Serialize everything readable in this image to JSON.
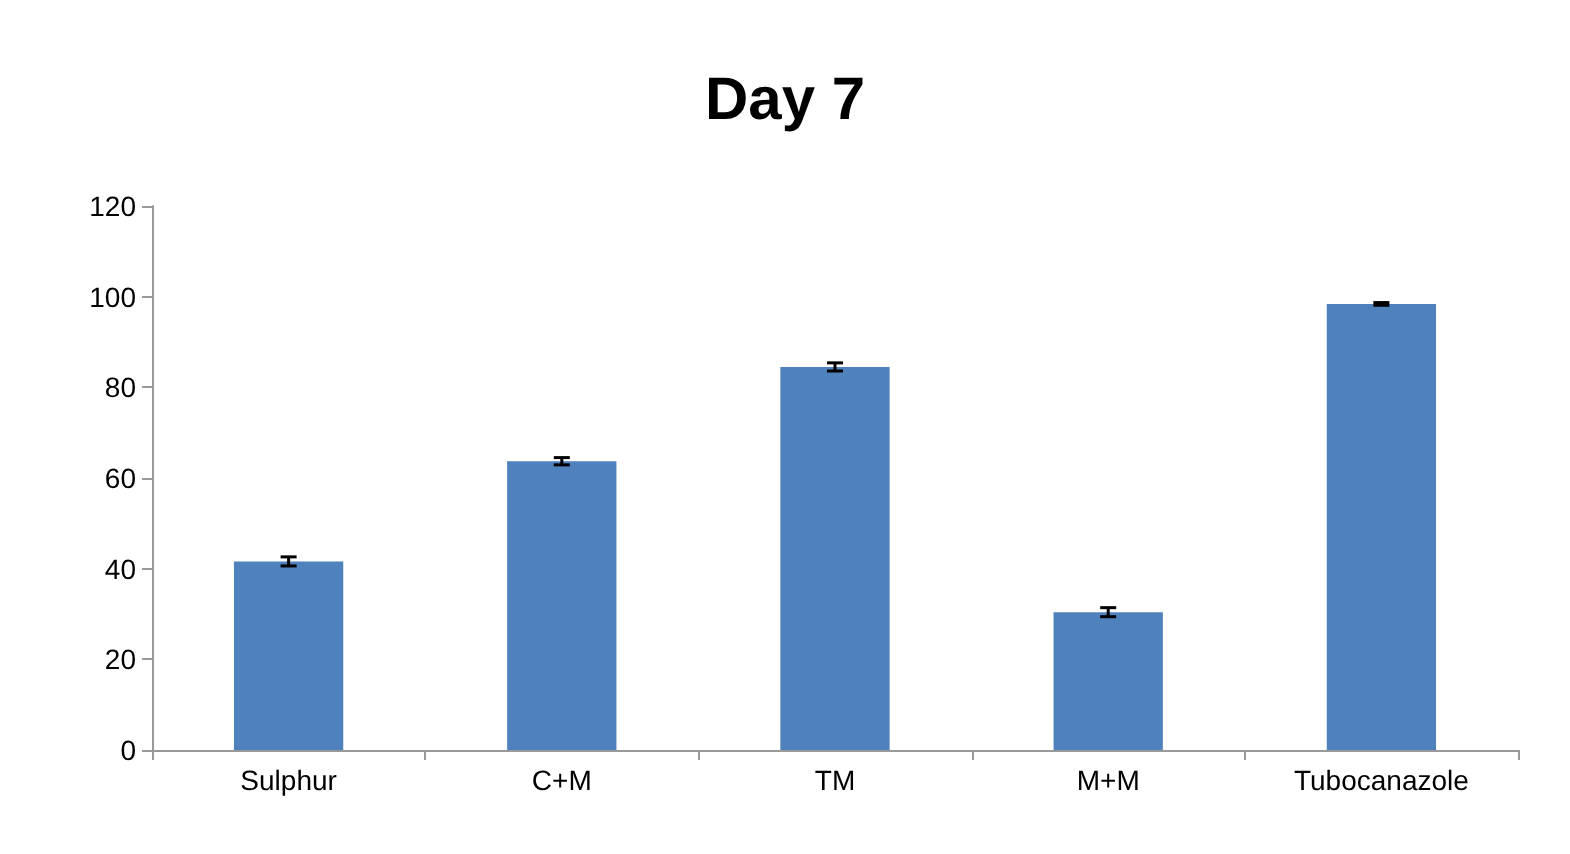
{
  "chart_data": {
    "type": "bar",
    "title": "Day 7",
    "categories": [
      "Sulphur",
      "C+M",
      "TM",
      "M+M",
      "Tubocanazole"
    ],
    "values": [
      41.6,
      63.7,
      84.5,
      30.4,
      98.4
    ],
    "errors": [
      1,
      0.8,
      0.9,
      1,
      0.3
    ],
    "color": "#4f81bd",
    "ylim": [
      0,
      120
    ],
    "yticks": [
      0,
      20,
      40,
      60,
      80,
      100,
      120
    ],
    "grid": false
  }
}
